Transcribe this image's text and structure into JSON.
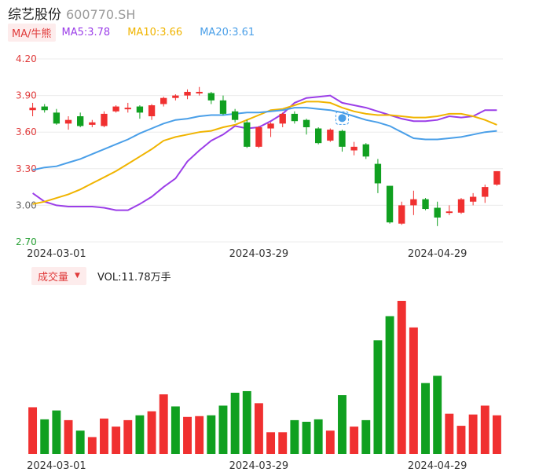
{
  "header": {
    "name": "综艺股份",
    "code": "600770.SH"
  },
  "ma": {
    "button": "MA/牛熊",
    "items": [
      {
        "label": "MA5:3.78",
        "color": "#9b3ee8"
      },
      {
        "label": "MA10:3.66",
        "color": "#f0b400"
      },
      {
        "label": "MA20:3.61",
        "color": "#4a9fe8"
      }
    ]
  },
  "volume": {
    "button": "成交量",
    "caret": "▼",
    "label": "VOL:11.78万手"
  },
  "colors": {
    "up": "#f03030",
    "down": "#10a020"
  },
  "chart_data": {
    "type": "candlestick",
    "x_ticks": [
      "2024-03-01",
      "2024-03-29",
      "2024-04-29"
    ],
    "x_tick_index": [
      2,
      19,
      34
    ],
    "y_ticks": [
      "4.20",
      "3.90",
      "3.60",
      "3.30",
      "3.00",
      "2.70"
    ],
    "ylim": [
      2.7,
      4.2
    ],
    "candles": [
      {
        "o": 3.78,
        "c": 3.8,
        "h": 3.84,
        "l": 3.73
      },
      {
        "o": 3.81,
        "c": 3.78,
        "h": 3.83,
        "l": 3.76
      },
      {
        "o": 3.76,
        "c": 3.67,
        "h": 3.79,
        "l": 3.66
      },
      {
        "o": 3.67,
        "c": 3.7,
        "h": 3.73,
        "l": 3.62
      },
      {
        "o": 3.73,
        "c": 3.65,
        "h": 3.76,
        "l": 3.64
      },
      {
        "o": 3.66,
        "c": 3.68,
        "h": 3.7,
        "l": 3.64
      },
      {
        "o": 3.65,
        "c": 3.75,
        "h": 3.77,
        "l": 3.64
      },
      {
        "o": 3.77,
        "c": 3.81,
        "h": 3.82,
        "l": 3.76
      },
      {
        "o": 3.8,
        "c": 3.8,
        "h": 3.84,
        "l": 3.76
      },
      {
        "o": 3.81,
        "c": 3.76,
        "h": 3.82,
        "l": 3.71
      },
      {
        "o": 3.73,
        "c": 3.82,
        "h": 3.83,
        "l": 3.7
      },
      {
        "o": 3.83,
        "c": 3.88,
        "h": 3.89,
        "l": 3.81
      },
      {
        "o": 3.88,
        "c": 3.9,
        "h": 3.91,
        "l": 3.86
      },
      {
        "o": 3.9,
        "c": 3.93,
        "h": 3.95,
        "l": 3.87
      },
      {
        "o": 3.92,
        "c": 3.93,
        "h": 3.97,
        "l": 3.9
      },
      {
        "o": 3.92,
        "c": 3.86,
        "h": 3.93,
        "l": 3.83
      },
      {
        "o": 3.86,
        "c": 3.75,
        "h": 3.9,
        "l": 3.74
      },
      {
        "o": 3.77,
        "c": 3.7,
        "h": 3.79,
        "l": 3.68
      },
      {
        "o": 3.68,
        "c": 3.48,
        "h": 3.7,
        "l": 3.47
      },
      {
        "o": 3.48,
        "c": 3.64,
        "h": 3.65,
        "l": 3.47
      },
      {
        "o": 3.63,
        "c": 3.67,
        "h": 3.68,
        "l": 3.56
      },
      {
        "o": 3.67,
        "c": 3.75,
        "h": 3.76,
        "l": 3.64
      },
      {
        "o": 3.75,
        "c": 3.69,
        "h": 3.77,
        "l": 3.67
      },
      {
        "o": 3.7,
        "c": 3.64,
        "h": 3.71,
        "l": 3.58
      },
      {
        "o": 3.63,
        "c": 3.51,
        "h": 3.64,
        "l": 3.5
      },
      {
        "o": 3.53,
        "c": 3.62,
        "h": 3.63,
        "l": 3.52
      },
      {
        "o": 3.61,
        "c": 3.48,
        "h": 3.62,
        "l": 3.44
      },
      {
        "o": 3.45,
        "c": 3.48,
        "h": 3.52,
        "l": 3.41
      },
      {
        "o": 3.5,
        "c": 3.4,
        "h": 3.51,
        "l": 3.38
      },
      {
        "o": 3.34,
        "c": 3.18,
        "h": 3.38,
        "l": 3.1
      },
      {
        "o": 3.16,
        "c": 2.86,
        "h": 3.16,
        "l": 2.85
      },
      {
        "o": 2.85,
        "c": 3.0,
        "h": 3.03,
        "l": 2.84
      },
      {
        "o": 3.0,
        "c": 3.05,
        "h": 3.12,
        "l": 2.92
      },
      {
        "o": 3.05,
        "c": 2.97,
        "h": 3.06,
        "l": 2.96
      },
      {
        "o": 2.98,
        "c": 2.9,
        "h": 3.03,
        "l": 2.83
      },
      {
        "o": 2.94,
        "c": 2.95,
        "h": 3.0,
        "l": 2.92
      },
      {
        "o": 2.94,
        "c": 3.05,
        "h": 3.06,
        "l": 2.93
      },
      {
        "o": 3.03,
        "c": 3.07,
        "h": 3.1,
        "l": 3.0
      },
      {
        "o": 3.07,
        "c": 3.15,
        "h": 3.17,
        "l": 3.02
      },
      {
        "o": 3.17,
        "c": 3.28,
        "h": 3.28,
        "l": 3.16
      }
    ],
    "ma_series": [
      {
        "name": "MA5",
        "color": "#9b3ee8",
        "values": [
          3.1,
          3.03,
          3.0,
          2.99,
          2.99,
          2.99,
          2.98,
          2.96,
          2.96,
          3.01,
          3.07,
          3.15,
          3.22,
          3.36,
          3.45,
          3.53,
          3.58,
          3.65,
          3.63,
          3.64,
          3.69,
          3.75,
          3.84,
          3.88,
          3.89,
          3.9,
          3.84,
          3.82,
          3.8,
          3.77,
          3.74,
          3.71,
          3.69,
          3.69,
          3.7,
          3.73,
          3.72,
          3.73,
          3.78,
          3.78
        ]
      },
      {
        "name": "MA10",
        "color": "#f0b400",
        "values": [
          3.01,
          3.03,
          3.06,
          3.09,
          3.13,
          3.18,
          3.23,
          3.28,
          3.34,
          3.4,
          3.46,
          3.53,
          3.56,
          3.58,
          3.6,
          3.61,
          3.64,
          3.66,
          3.7,
          3.74,
          3.78,
          3.79,
          3.82,
          3.85,
          3.85,
          3.84,
          3.8,
          3.77,
          3.75,
          3.74,
          3.74,
          3.73,
          3.72,
          3.72,
          3.73,
          3.75,
          3.75,
          3.73,
          3.7,
          3.66
        ]
      },
      {
        "name": "MA20",
        "color": "#4a9fe8",
        "values": [
          3.29,
          3.31,
          3.32,
          3.35,
          3.38,
          3.42,
          3.46,
          3.5,
          3.54,
          3.59,
          3.63,
          3.67,
          3.7,
          3.71,
          3.73,
          3.74,
          3.74,
          3.75,
          3.76,
          3.76,
          3.77,
          3.78,
          3.8,
          3.8,
          3.79,
          3.78,
          3.76,
          3.73,
          3.7,
          3.68,
          3.65,
          3.6,
          3.55,
          3.54,
          3.54,
          3.55,
          3.56,
          3.58,
          3.6,
          3.61
        ]
      }
    ],
    "volume_values": [
      58,
      43,
      54,
      42,
      29,
      21,
      44,
      34,
      42,
      48,
      53,
      74,
      59,
      46,
      47,
      48,
      60,
      76,
      78,
      63,
      27,
      27,
      42,
      40,
      43,
      29,
      73,
      34,
      42,
      141,
      171,
      190,
      157,
      88,
      97,
      50,
      35,
      49,
      60,
      48
    ],
    "volume_up": [
      true,
      false,
      false,
      true,
      false,
      true,
      true,
      true,
      true,
      false,
      true,
      true,
      false,
      true,
      true,
      false,
      false,
      false,
      false,
      true,
      true,
      true,
      false,
      false,
      false,
      true,
      false,
      true,
      false,
      false,
      false,
      true,
      true,
      false,
      false,
      true,
      true,
      true,
      true,
      true
    ]
  }
}
